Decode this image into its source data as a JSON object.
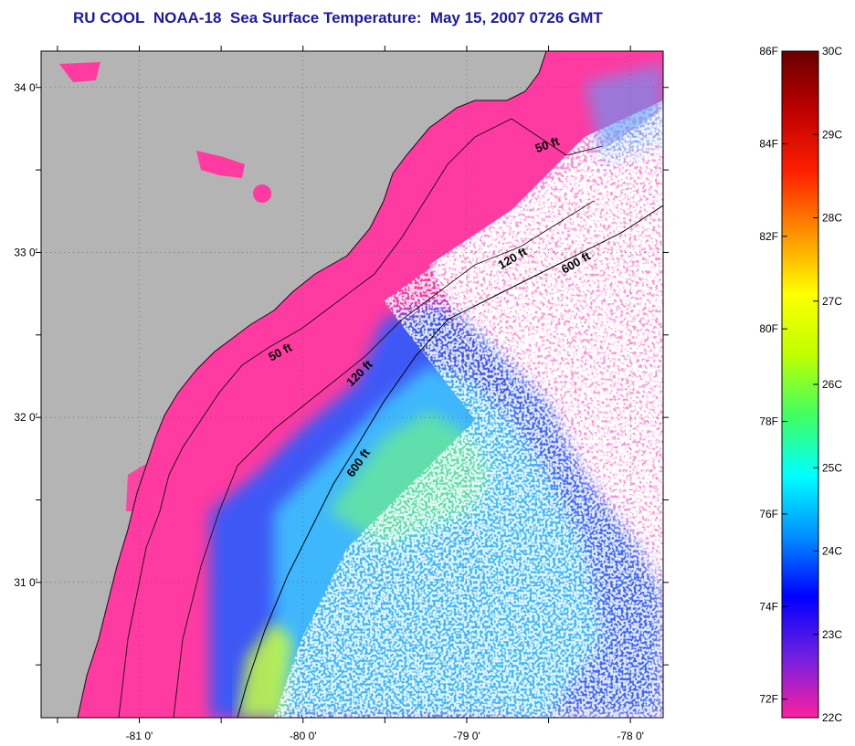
{
  "title": {
    "institution": "RU COOL",
    "satellite": "NOAA-18",
    "product": "Sea Surface Temperature:",
    "datetime": "May 15, 2007 0726 GMT"
  },
  "map": {
    "longitude_labels": [
      {
        "value": -81,
        "label": "-81 0'"
      },
      {
        "value": -80,
        "label": "-80 0'"
      },
      {
        "value": -79,
        "label": "-79 0'"
      },
      {
        "value": -78,
        "label": "-78 0'"
      }
    ],
    "latitude_labels": [
      {
        "value": 34,
        "label": "34 0'"
      },
      {
        "value": 33,
        "label": "33 0'"
      },
      {
        "value": 32,
        "label": "32 0'"
      },
      {
        "value": 31,
        "label": "31 0'"
      }
    ],
    "lon_range": [
      -81.6,
      -77.8
    ],
    "lat_range": [
      30.18,
      34.22
    ],
    "isobath_labels": [
      "50 ft",
      "120 ft",
      "600 ft",
      "50 ft",
      "120 ft",
      "600 ft"
    ],
    "colors": {
      "land": "#b4b4b4",
      "cold_water": "#ff3aa0",
      "cloud": "#ffffff"
    }
  },
  "colorbar": {
    "celsius_labels": [
      "30C",
      "29C",
      "28C",
      "27C",
      "26C",
      "25C",
      "24C",
      "23C",
      "22C"
    ],
    "fahrenheit_labels": [
      "86F",
      "84F",
      "82F",
      "80F",
      "78F",
      "76F",
      "74F",
      "72F"
    ],
    "fahrenheit_values": [
      86,
      84,
      82,
      80,
      78,
      76,
      74,
      72
    ],
    "celsius_range": [
      22,
      30
    ],
    "colors": [
      "#ff20a0",
      "#7020e0",
      "#0000ff",
      "#0090ff",
      "#00ffff",
      "#40ff60",
      "#c0ff00",
      "#ffff00",
      "#ff9000",
      "#ff2000",
      "#c00000",
      "#6a0000"
    ]
  }
}
